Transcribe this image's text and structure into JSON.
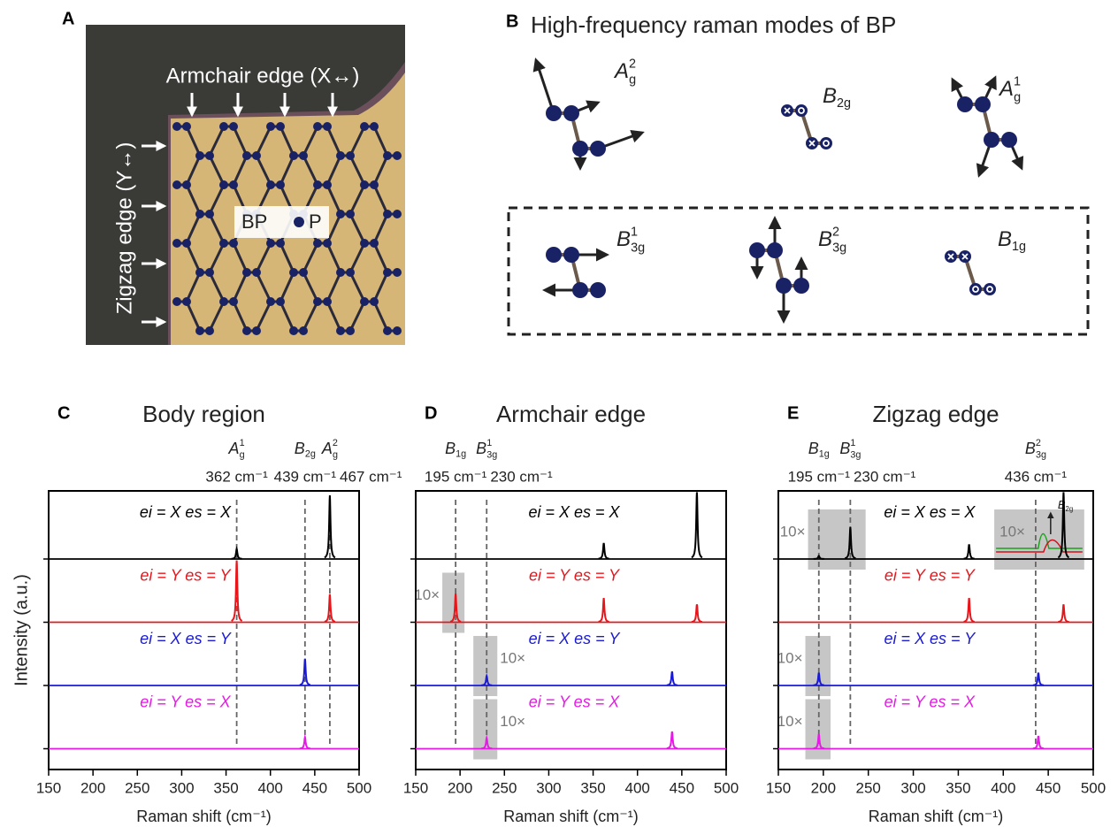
{
  "panel_a": {
    "letter": "A",
    "armchair_label": "Armchair edge (X↔)",
    "zigzag_label": "Zigzag edge (Y↔)",
    "legend_bp": "BP",
    "legend_p": "P"
  },
  "panel_b": {
    "letter": "B",
    "title": "High-frequency raman modes of BP",
    "modes": [
      {
        "symbol": "A",
        "sup": "2",
        "sub": "g"
      },
      {
        "symbol": "B",
        "sub": "2g"
      },
      {
        "symbol": "A",
        "sup": "1",
        "sub": "g"
      },
      {
        "symbol": "B",
        "sup": "1",
        "sub": "3g"
      },
      {
        "symbol": "B",
        "sup": "2",
        "sub": "3g"
      },
      {
        "symbol": "B",
        "sub": "1g"
      }
    ]
  },
  "chart_data": [
    {
      "type": "spectra",
      "letter": "C",
      "title": "Body region",
      "xlabel": "Raman shift (cm⁻¹)",
      "ylabel": "Intensity (a.u.)",
      "xlim": [
        150,
        500
      ],
      "xticks": [
        150,
        200,
        250,
        300,
        350,
        400,
        450,
        500
      ],
      "markers": [
        {
          "value": 362,
          "label": "362 cm⁻¹",
          "mode": {
            "symbol": "A",
            "sup": "1",
            "sub": "g"
          }
        },
        {
          "value": 439,
          "label": "439 cm⁻¹",
          "mode": {
            "symbol": "B",
            "sub": "2g"
          }
        },
        {
          "value": 467,
          "label": "467 cm⁻¹",
          "mode": {
            "symbol": "A",
            "sup": "2",
            "sub": "g"
          }
        }
      ],
      "series": [
        {
          "name": "ei = X es = X",
          "color": "#000000",
          "peaks": [
            362,
            467
          ],
          "heights": [
            0.16,
            1.0
          ]
        },
        {
          "name": "ei = Y es = Y",
          "color": "#e8161b",
          "peaks": [
            362,
            467
          ],
          "heights": [
            0.97,
            0.44
          ]
        },
        {
          "name": "ei = X es = Y",
          "color": "#1a1ad6",
          "peaks": [
            439
          ],
          "heights": [
            0.42
          ]
        },
        {
          "name": "ei = Y es = X",
          "color": "#e619e6",
          "peaks": [
            439
          ],
          "heights": [
            0.18
          ]
        }
      ],
      "insets": []
    },
    {
      "type": "spectra",
      "letter": "D",
      "title": "Armchair edge",
      "xlabel": "Raman shift (cm⁻¹)",
      "xlim": [
        150,
        500
      ],
      "xticks": [
        150,
        200,
        250,
        300,
        350,
        400,
        450,
        500
      ],
      "markers": [
        {
          "value": 195,
          "label": "195 cm⁻¹",
          "mode": {
            "symbol": "B",
            "sub": "1g"
          }
        },
        {
          "value": 230,
          "label": "230 cm⁻¹",
          "mode": {
            "symbol": "B",
            "sup": "1",
            "sub": "3g"
          }
        }
      ],
      "series": [
        {
          "name": "ei = X es = X",
          "color": "#000000",
          "peaks": [
            362,
            467
          ],
          "heights": [
            0.25,
            1.05
          ]
        },
        {
          "name": "ei = Y es = Y",
          "color": "#e8161b",
          "peaks": [
            195,
            362,
            467
          ],
          "heights": [
            0.45,
            0.38,
            0.28
          ]
        },
        {
          "name": "ei = X es = Y",
          "color": "#1a1ad6",
          "peaks": [
            230,
            439
          ],
          "heights": [
            0.15,
            0.22
          ]
        },
        {
          "name": "ei = Y es = X",
          "color": "#e619e6",
          "peaks": [
            230,
            439
          ],
          "heights": [
            0.17,
            0.27
          ]
        }
      ],
      "insets": [
        {
          "series": 1,
          "x": [
            180,
            205
          ],
          "label": "10×"
        },
        {
          "series": 2,
          "x": [
            215,
            242
          ],
          "label": "10×"
        },
        {
          "series": 3,
          "x": [
            215,
            242
          ],
          "label": "10×"
        }
      ]
    },
    {
      "type": "spectra",
      "letter": "E",
      "title": "Zigzag edge",
      "xlabel": "Raman shift (cm⁻¹)",
      "xlim": [
        150,
        500
      ],
      "xticks": [
        150,
        200,
        250,
        300,
        350,
        400,
        450,
        500
      ],
      "markers": [
        {
          "value": 195,
          "label": "195 cm⁻¹",
          "mode": {
            "symbol": "B",
            "sub": "1g"
          }
        },
        {
          "value": 230,
          "label": "230 cm⁻¹",
          "mode": {
            "symbol": "B",
            "sup": "1",
            "sub": "3g"
          }
        },
        {
          "value": 436,
          "label": "436 cm⁻¹",
          "mode": {
            "symbol": "B",
            "sup": "2",
            "sub": "3g"
          }
        }
      ],
      "series": [
        {
          "name": "ei = X es = X",
          "color": "#000000",
          "peaks": [
            195,
            230,
            362,
            467
          ],
          "heights": [
            0.05,
            0.5,
            0.23,
            1.05
          ]
        },
        {
          "name": "ei = Y es = Y",
          "color": "#e8161b",
          "peaks": [
            362,
            467
          ],
          "heights": [
            0.38,
            0.28
          ]
        },
        {
          "name": "ei = X es = Y",
          "color": "#1a1ad6",
          "peaks": [
            195,
            439
          ],
          "heights": [
            0.2,
            0.2
          ]
        },
        {
          "name": "ei = Y es = X",
          "color": "#e619e6",
          "peaks": [
            195,
            439
          ],
          "heights": [
            0.23,
            0.2
          ]
        }
      ],
      "insets": [
        {
          "series": 0,
          "x": [
            183,
            247
          ],
          "label": "10×"
        },
        {
          "series": 0,
          "x": [
            390,
            490
          ],
          "label": "10×",
          "annotation": {
            "symbol": "B",
            "sub": "2g"
          }
        },
        {
          "series": 2,
          "x": [
            180,
            208
          ],
          "label": "10×"
        },
        {
          "series": 3,
          "x": [
            180,
            208
          ],
          "label": "10×"
        }
      ]
    }
  ]
}
